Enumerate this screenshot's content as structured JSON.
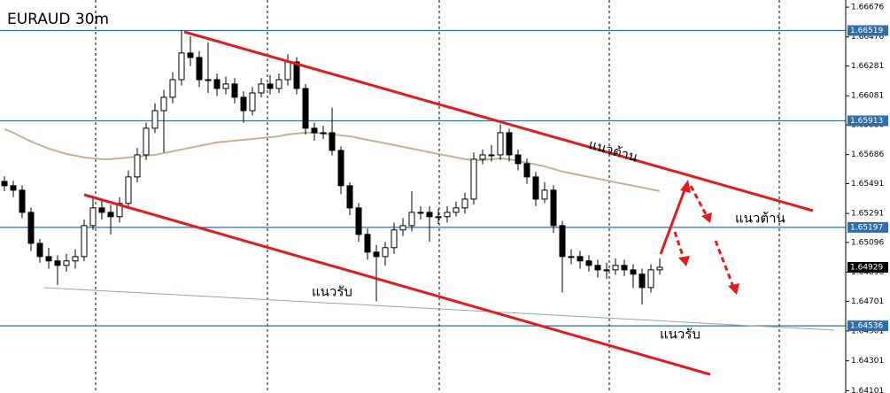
{
  "chart_data": {
    "type": "candlestick",
    "title": "EURAUD 30m",
    "open": [
      1.65506,
      1.65477,
      1.65447,
      1.65298,
      1.6509,
      1.65001,
      1.64972,
      1.64942,
      1.64972,
      1.65001,
      1.65209,
      1.65328,
      1.65298,
      1.65269,
      1.65358,
      1.65536,
      1.65684,
      1.65863,
      1.65981,
      1.66071,
      1.66189,
      1.66368,
      1.66338,
      1.66189,
      1.66189,
      1.6613,
      1.6616,
      1.66071,
      1.65981,
      1.661,
      1.6616,
      1.6613,
      1.66189,
      1.66308,
      1.6613,
      1.65863,
      1.65833,
      1.65833,
      1.65714,
      1.65477,
      1.65328,
      1.6515,
      1.65031,
      1.65001,
      1.65061,
      1.6518,
      1.65209,
      1.65298,
      1.65298,
      1.65269,
      1.65269,
      1.65298,
      1.65328,
      1.65387,
      1.65655,
      1.65684,
      1.65684,
      1.65833,
      1.65684,
      1.65625,
      1.65536,
      1.65387,
      1.65447,
      1.65209,
      1.65001,
      1.65001,
      1.64972,
      1.64942,
      1.64912,
      1.64912,
      1.64942,
      1.64912,
      1.64883,
      1.64793,
      1.64912
    ],
    "high": [
      1.6554,
      1.6551,
      1.6548,
      1.6533,
      1.6512,
      1.6506,
      1.6501,
      1.6502,
      1.6505,
      1.6525,
      1.654,
      1.6538,
      1.6535,
      1.654,
      1.6558,
      1.6573,
      1.659,
      1.6603,
      1.6612,
      1.6624,
      1.6652,
      1.6648,
      1.6638,
      1.6644,
      1.6623,
      1.6621,
      1.662,
      1.6611,
      1.6614,
      1.662,
      1.6622,
      1.6623,
      1.6636,
      1.6634,
      1.6616,
      1.659,
      1.6588,
      1.66,
      1.6574,
      1.655,
      1.6536,
      1.6519,
      1.6508,
      1.651,
      1.6523,
      1.6526,
      1.6544,
      1.6534,
      1.6534,
      1.6532,
      1.6534,
      1.6537,
      1.6543,
      1.657,
      1.6572,
      1.6575,
      1.6589,
      1.6586,
      1.6572,
      1.6566,
      1.6557,
      1.655,
      1.6548,
      1.6524,
      1.6505,
      1.6504,
      1.6501,
      1.6498,
      1.6496,
      1.6499,
      1.6498,
      1.6495,
      1.6492,
      1.6495,
      1.6499
    ],
    "low": [
      1.6544,
      1.654,
      1.6526,
      1.6504,
      1.6496,
      1.6492,
      1.6481,
      1.649,
      1.6492,
      1.6497,
      1.6518,
      1.6525,
      1.6515,
      1.6523,
      1.6532,
      1.655,
      1.6565,
      1.6583,
      1.657,
      1.6603,
      1.6615,
      1.6628,
      1.6614,
      1.661,
      1.6608,
      1.6609,
      1.6603,
      1.659,
      1.6595,
      1.6607,
      1.6609,
      1.661,
      1.6615,
      1.6609,
      1.6582,
      1.6578,
      1.6579,
      1.6568,
      1.6542,
      1.6528,
      1.651,
      1.6498,
      1.647,
      1.6494,
      1.6502,
      1.6514,
      1.6517,
      1.6525,
      1.651,
      1.6522,
      1.6523,
      1.6527,
      1.6529,
      1.6535,
      1.6562,
      1.6564,
      1.6565,
      1.6564,
      1.6558,
      1.6549,
      1.6534,
      1.6536,
      1.6516,
      1.6476,
      1.6495,
      1.6492,
      1.649,
      1.6486,
      1.6485,
      1.6488,
      1.6487,
      1.6479,
      1.6468,
      1.6476,
      1.6488
    ],
    "close": [
      1.65477,
      1.65447,
      1.65298,
      1.6509,
      1.65001,
      1.64972,
      1.64942,
      1.64972,
      1.65001,
      1.65209,
      1.65328,
      1.65298,
      1.65269,
      1.65358,
      1.65536,
      1.65684,
      1.65863,
      1.65981,
      1.66071,
      1.66189,
      1.66368,
      1.66338,
      1.66189,
      1.66189,
      1.6613,
      1.6616,
      1.66071,
      1.65981,
      1.661,
      1.6616,
      1.6613,
      1.66189,
      1.66308,
      1.6613,
      1.65863,
      1.65833,
      1.65833,
      1.65714,
      1.65477,
      1.65328,
      1.6515,
      1.65031,
      1.65001,
      1.65061,
      1.6518,
      1.65209,
      1.65298,
      1.65298,
      1.65269,
      1.65269,
      1.65298,
      1.65328,
      1.65387,
      1.65655,
      1.65684,
      1.65684,
      1.65833,
      1.65684,
      1.65625,
      1.65536,
      1.65387,
      1.65447,
      1.65209,
      1.65001,
      1.65001,
      1.64972,
      1.64942,
      1.64912,
      1.64912,
      1.64942,
      1.64912,
      1.64883,
      1.64793,
      1.64912,
      1.64929
    ],
    "ma": {
      "color": "#c8b08f",
      "values": [
        1.65857,
        1.65833,
        1.65803,
        1.65774,
        1.6575,
        1.65726,
        1.65708,
        1.6569,
        1.65679,
        1.65667,
        1.65661,
        1.65655,
        1.65655,
        1.65661,
        1.65667,
        1.65673,
        1.65679,
        1.65684,
        1.65696,
        1.65708,
        1.6572,
        1.65732,
        1.65744,
        1.65756,
        1.65768,
        1.65774,
        1.6578,
        1.65785,
        1.65791,
        1.65797,
        1.65803,
        1.65809,
        1.65821,
        1.65827,
        1.65833,
        1.65833,
        1.65827,
        1.65821,
        1.65815,
        1.65809,
        1.65797,
        1.65785,
        1.65774,
        1.65762,
        1.6575,
        1.65738,
        1.65726,
        1.65714,
        1.65702,
        1.6569,
        1.65679,
        1.65667,
        1.65655,
        1.65649,
        1.65649,
        1.65655,
        1.65661,
        1.65655,
        1.65643,
        1.65631,
        1.65619,
        1.65607,
        1.65589,
        1.65572,
        1.6556,
        1.65548,
        1.65536,
        1.65524,
        1.65512,
        1.655,
        1.65488,
        1.65477,
        1.65465,
        1.65453,
        1.65441
      ]
    },
    "ylim": [
      1.64085,
      1.66724
    ],
    "yticks": [
      1.66676,
      1.66476,
      1.66281,
      1.66081,
      1.65886,
      1.65686,
      1.65491,
      1.65291,
      1.65096,
      1.64896,
      1.64701,
      1.64501,
      1.64301,
      1.64101
    ],
    "levels": {
      "color": "#2f6ea8",
      "values": [
        1.66519,
        1.65913,
        1.65197,
        1.64536
      ]
    },
    "current_price": 1.64929,
    "annotations": [
      "แนวต้าน",
      "แนวต้าน",
      "แนวรับ",
      "แนวรับ"
    ]
  }
}
